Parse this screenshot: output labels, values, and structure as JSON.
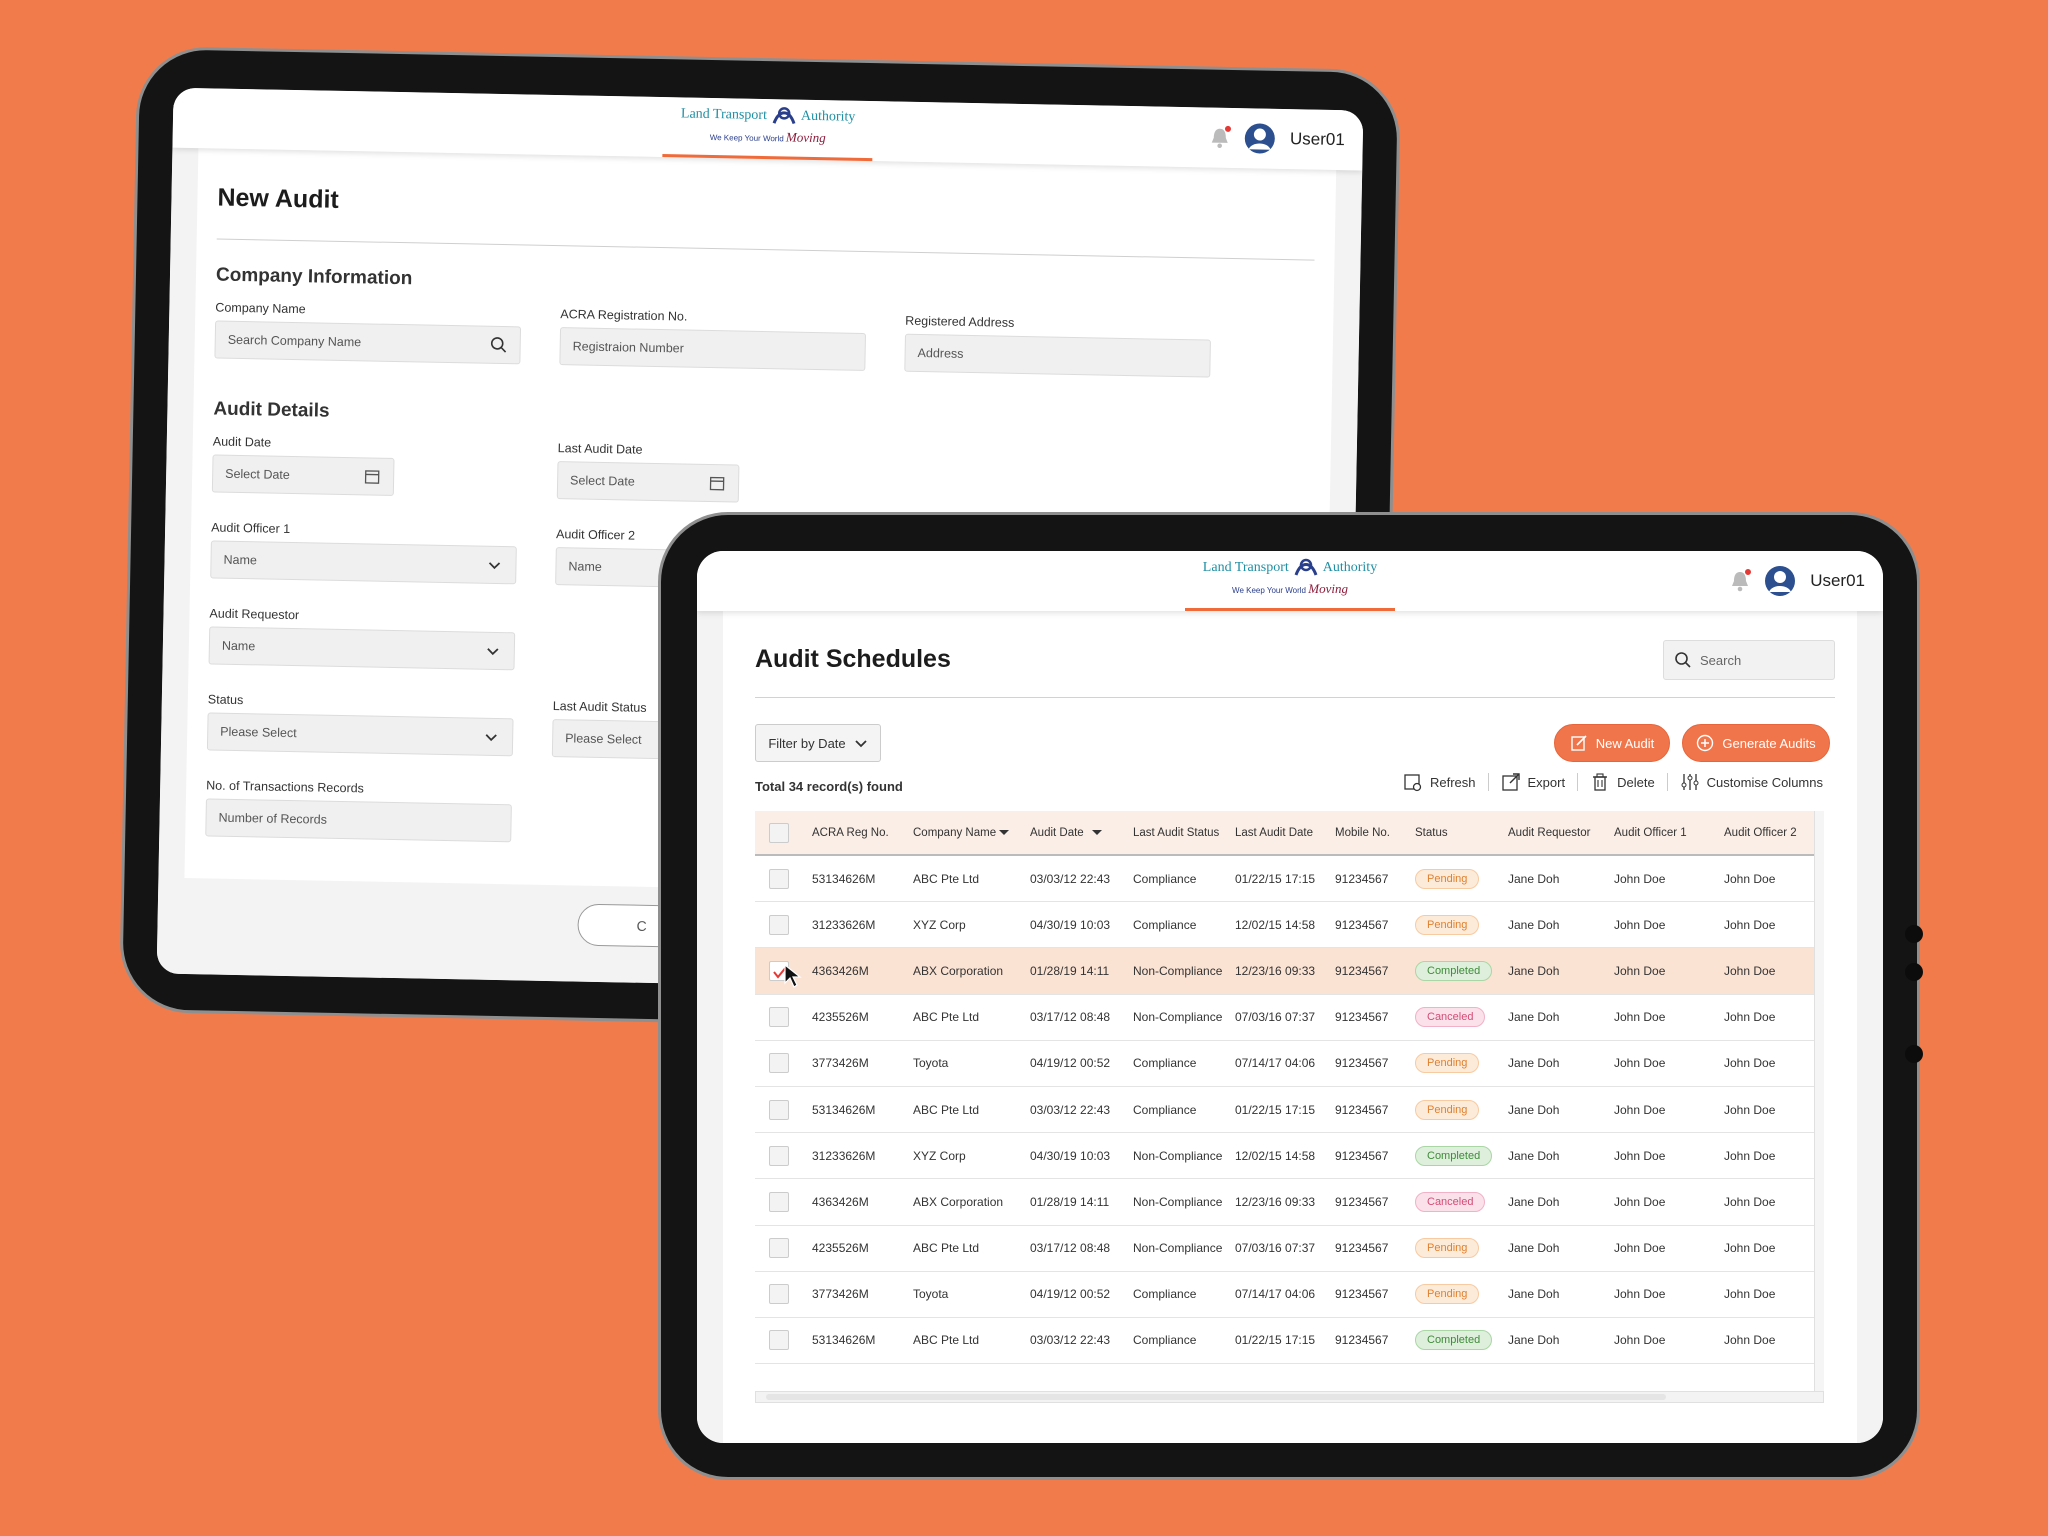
{
  "header": {
    "logo_title_left": "Land Transport",
    "logo_title_right": "Authority",
    "logo_tagline": "We Keep Your World",
    "logo_tagline_script": "Moving",
    "user_name": "User01"
  },
  "new_audit": {
    "title": "New Audit",
    "company_section": "Company Information",
    "company_name_label": "Company Name",
    "company_name_placeholder": "Search Company Name",
    "acra_label": "ACRA Registration No.",
    "acra_placeholder": "Registraion Number",
    "address_label": "Registered Address",
    "address_placeholder": "Address",
    "audit_section": "Audit Details",
    "audit_date_label": "Audit Date",
    "audit_date_placeholder": "Select Date",
    "last_audit_date_label": "Last Audit Date",
    "last_audit_date_placeholder": "Select Date",
    "officer1_label": "Audit Officer 1",
    "officer1_placeholder": "Name",
    "officer2_label": "Audit Officer 2",
    "officer2_placeholder": "Name",
    "requestor_label": "Audit Requestor",
    "requestor_placeholder": "Name",
    "status_label": "Status",
    "status_placeholder": "Please Select",
    "last_status_label": "Last Audit Status",
    "last_status_placeholder": "Please Select",
    "transactions_label": "No. of Transactions Records",
    "transactions_placeholder": "Number of Records",
    "cancel_partial": "C"
  },
  "schedules": {
    "title": "Audit Schedules",
    "search_placeholder": "Search",
    "filter_label": "Filter by Date",
    "new_audit_label": "New Audit",
    "generate_label": "Generate Audits",
    "records_found": "Total 34 record(s) found",
    "tools": {
      "refresh": "Refresh",
      "export": "Export",
      "delete": "Delete",
      "customise": "Customise Columns"
    },
    "columns": [
      "ACRA Reg No.",
      "Company Name",
      "Audit Date",
      "Last Audit Status",
      "Last Audit Date",
      "Mobile No.",
      "Status",
      "Audit Requestor",
      "Audit Officer 1",
      "Audit Officer 2"
    ],
    "rows": [
      {
        "acra": "53134626M",
        "company": "ABC Pte Ltd",
        "date": "03/03/12 22:43",
        "last_status": "Compliance",
        "last_date": "01/22/15 17:15",
        "mobile": "91234567",
        "status": "Pending",
        "requestor": "Jane Doh",
        "officer1": "John Doe",
        "officer2": "John Doe",
        "checked": false
      },
      {
        "acra": "31233626M",
        "company": "XYZ Corp",
        "date": "04/30/19 10:03",
        "last_status": "Compliance",
        "last_date": "12/02/15 14:58",
        "mobile": "91234567",
        "status": "Pending",
        "requestor": "Jane Doh",
        "officer1": "John Doe",
        "officer2": "John Doe",
        "checked": false
      },
      {
        "acra": "4363426M",
        "company": "ABX Corporation",
        "date": "01/28/19 14:11",
        "last_status": "Non-Compliance",
        "last_date": "12/23/16 09:33",
        "mobile": "91234567",
        "status": "Completed",
        "requestor": "Jane Doh",
        "officer1": "John Doe",
        "officer2": "John Doe",
        "checked": true
      },
      {
        "acra": "4235526M",
        "company": "ABC Pte Ltd",
        "date": "03/17/12 08:48",
        "last_status": "Non-Compliance",
        "last_date": "07/03/16 07:37",
        "mobile": "91234567",
        "status": "Canceled",
        "requestor": "Jane Doh",
        "officer1": "John Doe",
        "officer2": "John Doe",
        "checked": false
      },
      {
        "acra": "3773426M",
        "company": "Toyota",
        "date": "04/19/12 00:52",
        "last_status": "Compliance",
        "last_date": "07/14/17 04:06",
        "mobile": "91234567",
        "status": "Pending",
        "requestor": "Jane Doh",
        "officer1": "John Doe",
        "officer2": "John Doe",
        "checked": false
      },
      {
        "acra": "53134626M",
        "company": "ABC Pte Ltd",
        "date": "03/03/12 22:43",
        "last_status": "Compliance",
        "last_date": "01/22/15 17:15",
        "mobile": "91234567",
        "status": "Pending",
        "requestor": "Jane Doh",
        "officer1": "John Doe",
        "officer2": "John Doe",
        "checked": false
      },
      {
        "acra": "31233626M",
        "company": "XYZ Corp",
        "date": "04/30/19 10:03",
        "last_status": "Non-Compliance",
        "last_date": "12/02/15 14:58",
        "mobile": "91234567",
        "status": "Completed",
        "requestor": "Jane Doh",
        "officer1": "John Doe",
        "officer2": "John Doe",
        "checked": false
      },
      {
        "acra": "4363426M",
        "company": "ABX Corporation",
        "date": "01/28/19 14:11",
        "last_status": "Non-Compliance",
        "last_date": "12/23/16 09:33",
        "mobile": "91234567",
        "status": "Canceled",
        "requestor": "Jane Doh",
        "officer1": "John Doe",
        "officer2": "John Doe",
        "checked": false
      },
      {
        "acra": "4235526M",
        "company": "ABC Pte Ltd",
        "date": "03/17/12 08:48",
        "last_status": "Non-Compliance",
        "last_date": "07/03/16 07:37",
        "mobile": "91234567",
        "status": "Pending",
        "requestor": "Jane Doh",
        "officer1": "John Doe",
        "officer2": "John Doe",
        "checked": false
      },
      {
        "acra": "3773426M",
        "company": "Toyota",
        "date": "04/19/12 00:52",
        "last_status": "Compliance",
        "last_date": "07/14/17 04:06",
        "mobile": "91234567",
        "status": "Pending",
        "requestor": "Jane Doh",
        "officer1": "John Doe",
        "officer2": "John Doe",
        "checked": false
      },
      {
        "acra": "53134626M",
        "company": "ABC Pte Ltd",
        "date": "03/03/12 22:43",
        "last_status": "Compliance",
        "last_date": "01/22/15 17:15",
        "mobile": "91234567",
        "status": "Completed",
        "requestor": "Jane Doh",
        "officer1": "John Doe",
        "officer2": "John Doe",
        "checked": false
      }
    ]
  },
  "colors": {
    "background": "#f27b4b",
    "accent": "#f1754a",
    "pending": "#e0802f",
    "completed": "#3f8a3a",
    "canceled": "#d24d77"
  }
}
